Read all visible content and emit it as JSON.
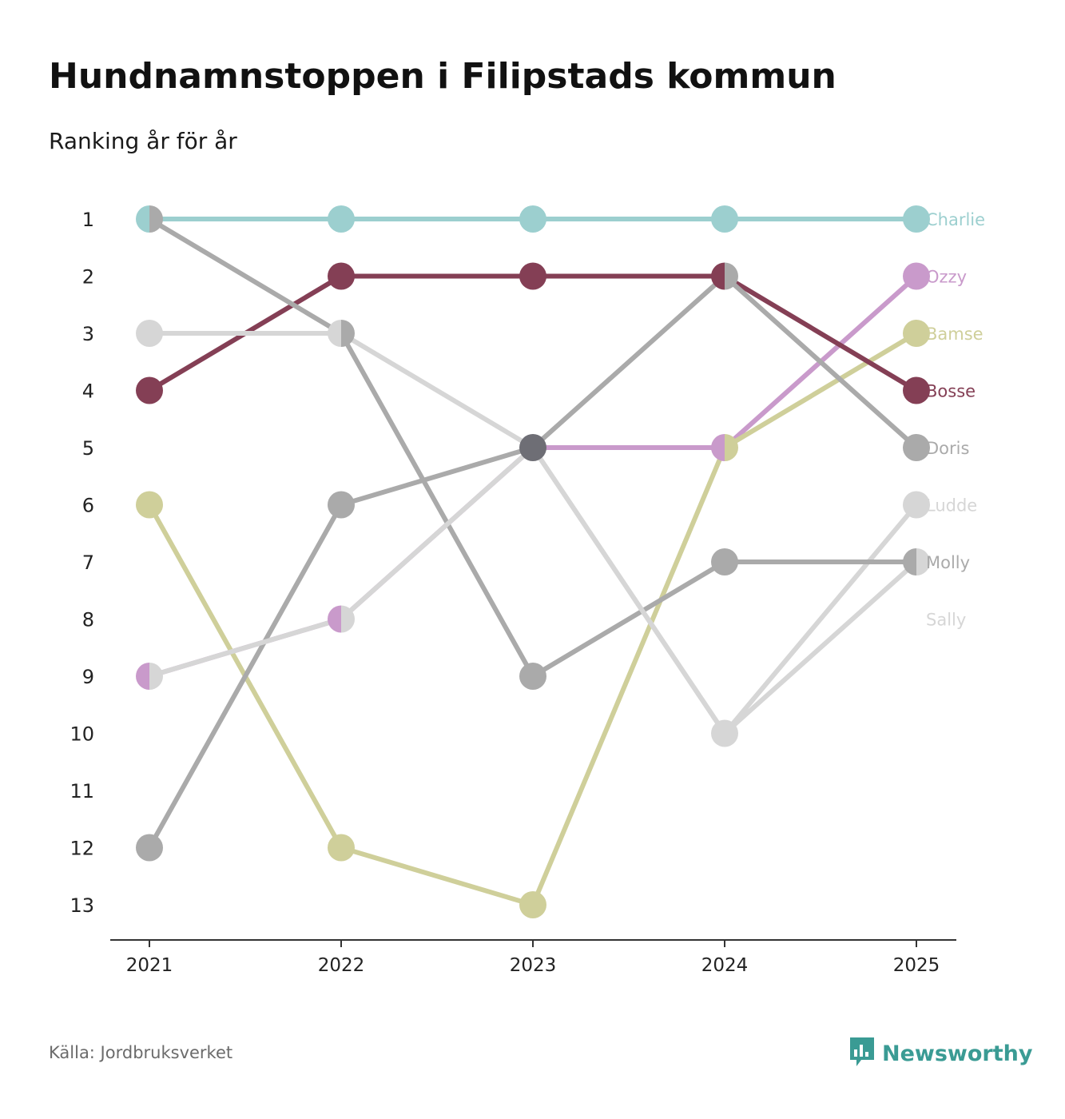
{
  "title": "Hundnamnstoppen i Filipstads kommun",
  "subtitle": "Ranking år för år",
  "source": "Källa: Jordbruksverket",
  "brand": {
    "name": "Newsworthy",
    "icon": "newsworthy-logo-icon",
    "color": "#3a9b94"
  },
  "chart_data": {
    "type": "line",
    "title": "Hundnamnstoppen i Filipstads kommun",
    "subtitle": "Ranking år för år",
    "xlabel": "",
    "ylabel": "",
    "categories": [
      "2021",
      "2022",
      "2023",
      "2024",
      "2025"
    ],
    "y_ticks": [
      "1",
      "2",
      "3",
      "4",
      "5",
      "6",
      "7",
      "8",
      "9",
      "10",
      "11",
      "12",
      "13"
    ],
    "ylim": [
      1,
      13
    ],
    "y_reversed": true,
    "grid": false,
    "series": [
      {
        "name": "Charlie",
        "color": "#9ccfcf",
        "values": [
          1,
          1,
          1,
          1,
          1
        ]
      },
      {
        "name": "Ozzy",
        "color": "#c99acb",
        "values": [
          9,
          8,
          5,
          5,
          2
        ]
      },
      {
        "name": "Bamse",
        "color": "#cfcf9a",
        "values": [
          6,
          12,
          13,
          5,
          3
        ]
      },
      {
        "name": "Bosse",
        "color": "#843f55",
        "values": [
          4,
          2,
          2,
          2,
          4
        ]
      },
      {
        "name": "Doris",
        "color": "#aaaaaa",
        "values": [
          12,
          6,
          5,
          2,
          5
        ]
      },
      {
        "name": "Ludde",
        "color": "#d6d6d6",
        "values": [
          3,
          3,
          5,
          10,
          6
        ]
      },
      {
        "name": "Molly",
        "color": "#aaaaaa",
        "values": [
          1,
          3,
          9,
          7,
          7
        ]
      },
      {
        "name": "Sally",
        "color": "#d6d6d6",
        "values": [
          9,
          8,
          5,
          10,
          7
        ]
      }
    ],
    "overlap_color": "#6e6e75"
  }
}
